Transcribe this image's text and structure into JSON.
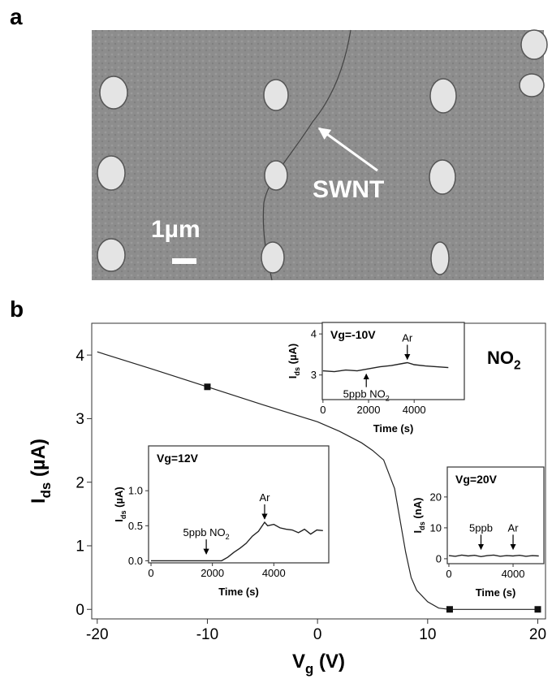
{
  "panel_labels": [
    "a",
    "b"
  ],
  "image": {
    "annotation": "SWNT",
    "scale_bar": "1µm"
  },
  "chart_data": [
    {
      "type": "line",
      "xlabel": [
        "V",
        "g",
        " (V)"
      ],
      "ylabel": [
        "I",
        "ds",
        " (µA)"
      ],
      "annotation": [
        "NO",
        "2"
      ],
      "x": [
        -20,
        -15,
        -10,
        -5,
        0,
        2,
        4,
        5,
        6,
        7,
        7.5,
        8,
        8.5,
        9,
        10,
        11,
        12,
        20
      ],
      "values": [
        4.05,
        3.78,
        3.5,
        3.22,
        2.95,
        2.8,
        2.62,
        2.5,
        2.35,
        1.9,
        1.4,
        0.9,
        0.5,
        0.3,
        0.12,
        0.02,
        0,
        0
      ],
      "markers": {
        "x": [
          -10,
          12,
          20
        ],
        "values": [
          3.5,
          0,
          0
        ]
      },
      "color": "#222222",
      "xlim": [
        -20.5,
        20.7
      ],
      "ylim": [
        -0.15,
        4.5
      ],
      "xticks": [
        -20,
        -10,
        0,
        10,
        20
      ],
      "yticks": [
        0,
        1,
        2,
        3,
        4
      ]
    },
    {
      "type": "line",
      "title": "Vg=-10V",
      "xlabel": [
        "Time (s)"
      ],
      "ylabel": [
        "I",
        "ds",
        " (µA)"
      ],
      "x": [
        0,
        500,
        1000,
        1500,
        2000,
        2500,
        3000,
        3500,
        3700,
        4000,
        4500,
        5000,
        5500
      ],
      "values": [
        3.1,
        3.08,
        3.12,
        3.1,
        3.15,
        3.2,
        3.23,
        3.28,
        3.3,
        3.25,
        3.22,
        3.2,
        3.18
      ],
      "annotations": [
        {
          "text": [
            "Ar"
          ],
          "x": 3700,
          "y": 3.3
        },
        {
          "text": [
            "5ppb NO",
            "2"
          ],
          "x": 1900,
          "y": 3.1
        }
      ],
      "color": "#222222",
      "xlim": [
        -30,
        6200
      ],
      "ylim": [
        2.4,
        4.28
      ],
      "xticks": [
        0,
        2000,
        4000
      ],
      "yticks": [
        3,
        4
      ]
    },
    {
      "type": "line",
      "title": "Vg=12V",
      "xlabel": [
        "Time (s)"
      ],
      "ylabel": [
        "I",
        "ds",
        " (µA)"
      ],
      "x": [
        0,
        500,
        1000,
        1500,
        2000,
        2300,
        2500,
        2700,
        2900,
        3100,
        3300,
        3500,
        3700,
        3800,
        4000,
        4200,
        4400,
        4600,
        4800,
        5000,
        5200,
        5400,
        5600
      ],
      "values": [
        0,
        0,
        0,
        0,
        0,
        0,
        0.05,
        0.12,
        0.18,
        0.25,
        0.35,
        0.42,
        0.55,
        0.5,
        0.52,
        0.47,
        0.45,
        0.44,
        0.4,
        0.45,
        0.38,
        0.44,
        0.43
      ],
      "annotations": [
        {
          "text": [
            "5ppb NO",
            "2"
          ],
          "x": 1800,
          "y": 0.05
        },
        {
          "text": [
            "Ar"
          ],
          "x": 3700,
          "y": 0.55
        }
      ],
      "color": "#222222",
      "xlim": [
        -80,
        5790
      ],
      "ylim": [
        -0.03,
        1.64
      ],
      "xticks": [
        0,
        2000,
        4000
      ],
      "yticks": [
        {
          "value": 0,
          "label": "0.0"
        },
        {
          "value": 0.5,
          "label": "0.5"
        },
        {
          "value": 1,
          "label": "1.0"
        }
      ]
    },
    {
      "type": "line",
      "title": "Vg=20V",
      "xlabel": [
        "Time (s)"
      ],
      "ylabel": [
        "I",
        "ds",
        " (nA)"
      ],
      "x": [
        0,
        400,
        800,
        1200,
        1600,
        2000,
        2400,
        2800,
        3200,
        3600,
        4000,
        4400,
        4800,
        5200,
        5600
      ],
      "values": [
        1,
        0.8,
        1.2,
        0.9,
        1.1,
        0.7,
        1,
        1.2,
        0.8,
        1,
        0.9,
        1.1,
        0.8,
        1,
        0.9
      ],
      "annotations": [
        {
          "text": [
            "5ppb"
          ],
          "x": 2000,
          "y": 2
        },
        {
          "text": [
            "Ar"
          ],
          "x": 4000,
          "y": 2
        }
      ],
      "color": "#222222",
      "xlim": [
        -100,
        5920
      ],
      "ylim": [
        -1.6,
        29.7
      ],
      "xticks": [
        0,
        4000
      ],
      "yticks": [
        0,
        10,
        20
      ]
    }
  ]
}
